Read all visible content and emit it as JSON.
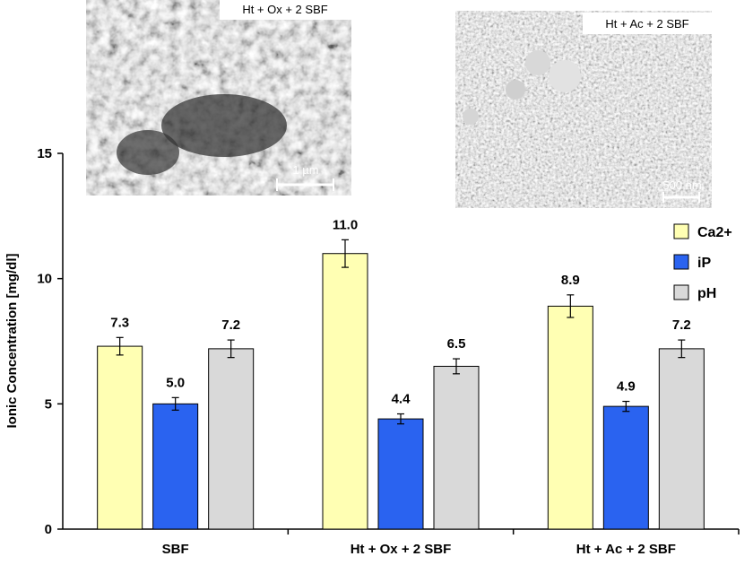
{
  "chart_data": {
    "type": "bar",
    "ylabel": "Ionic Concentration [mg/dl]",
    "ylim": [
      0,
      15
    ],
    "yticks": [
      0,
      5,
      10,
      15
    ],
    "categories": [
      "SBF",
      "Ht + Ox + 2 SBF",
      "Ht + Ac + 2 SBF"
    ],
    "series": [
      {
        "name": "Ca2+",
        "color": "#ffffb3",
        "values": [
          7.3,
          11.0,
          8.9
        ],
        "labels": [
          "7.3",
          "11.0",
          "8.9"
        ],
        "errors": [
          0.35,
          0.55,
          0.45
        ]
      },
      {
        "name": "iP",
        "color": "#2a63f0",
        "values": [
          5.0,
          4.4,
          4.9
        ],
        "labels": [
          "5.0",
          "4.4",
          "4.9"
        ],
        "errors": [
          0.25,
          0.2,
          0.2
        ]
      },
      {
        "name": "pH",
        "color": "#d9d9d9",
        "values": [
          7.2,
          6.5,
          7.2
        ],
        "labels": [
          "7.2",
          "6.5",
          "7.2"
        ],
        "errors": [
          0.35,
          0.3,
          0.35
        ]
      }
    ],
    "legend_position": "top-right",
    "grid": false
  },
  "insets": [
    {
      "caption": "Ht + Ox + 2 SBF",
      "scale_bar": "1 µm"
    },
    {
      "caption": "Ht + Ac + 2 SBF",
      "scale_bar": "500 nm"
    }
  ]
}
